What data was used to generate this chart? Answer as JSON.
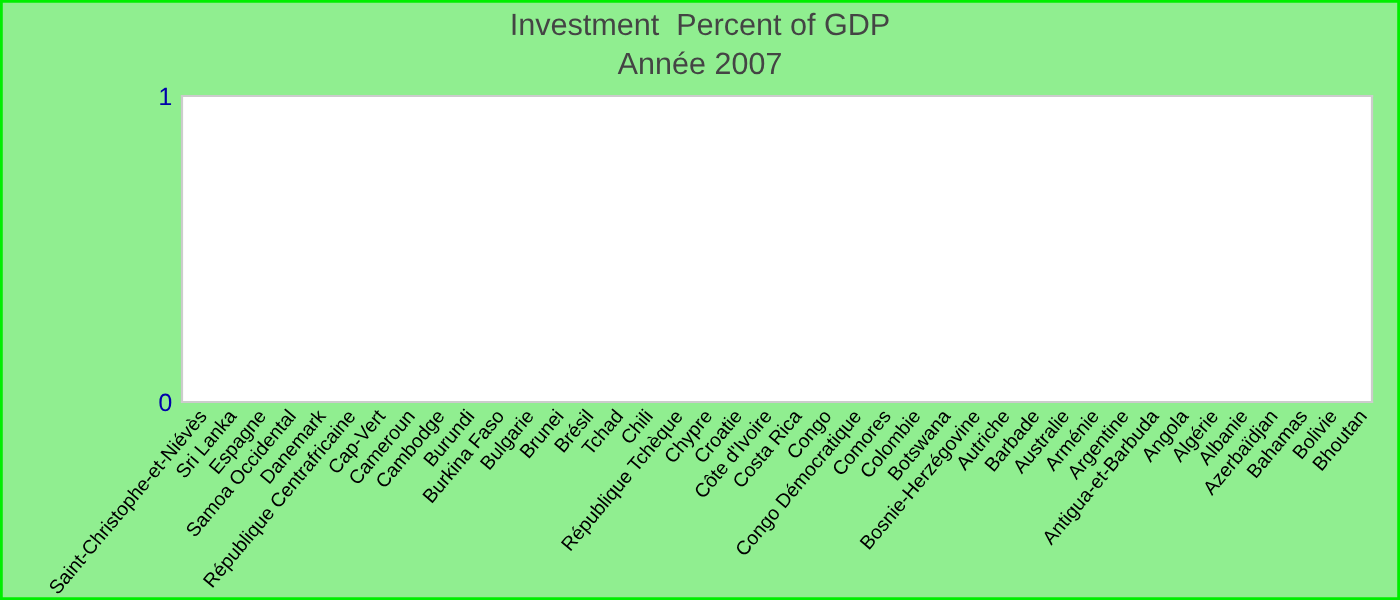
{
  "chart_data": {
    "type": "bar",
    "title": "Investment  Percent of GDP",
    "subtitle": "Année 2007",
    "categories": [
      "Saint-Christophe-et-Niévès",
      "Sri Lanka",
      "Espagne",
      "Samoa Occidental",
      "Danemark",
      "République Centrafricaine",
      "Cap-Vert",
      "Cameroun",
      "Cambodge",
      "Burundi",
      "Burkina Faso",
      "Bulgarie",
      "Brunei",
      "Brésil",
      "Tchad",
      "Chili",
      "République Tchèque",
      "Chypre",
      "Croatie",
      "Côte d'Ivoire",
      "Costa Rica",
      "Congo",
      "Congo Démocratique",
      "Comores",
      "Colombie",
      "Botswana",
      "Bosnie-Herzégovine",
      "Autriche",
      "Barbade",
      "Australie",
      "Arménie",
      "Argentine",
      "Antigua-et-Barbuda",
      "Angola",
      "Algérie",
      "Albanie",
      "Azerbaïdjan",
      "Bahamas",
      "Bolivie",
      "Bhoutan"
    ],
    "values": [
      null,
      null,
      null,
      null,
      null,
      null,
      null,
      null,
      null,
      null,
      null,
      null,
      null,
      null,
      null,
      null,
      null,
      null,
      null,
      null,
      null,
      null,
      null,
      null,
      null,
      null,
      null,
      null,
      null,
      null,
      null,
      null,
      null,
      null,
      null,
      null,
      null,
      null,
      null,
      null
    ],
    "ylim": [
      0,
      1
    ],
    "yticks": [
      0,
      1
    ],
    "grid": false,
    "legend": false
  }
}
